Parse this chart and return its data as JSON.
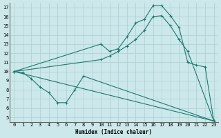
{
  "bg_color": "#cce8ea",
  "grid_color": "#aacfd2",
  "line_color": "#1a7a6e",
  "marker": "+",
  "xlabel": "Humidex (Indice chaleur)",
  "xlim": [
    -0.5,
    23.5
  ],
  "ylim": [
    4.5,
    17.5
  ],
  "xticks": [
    0,
    1,
    2,
    3,
    4,
    5,
    6,
    7,
    8,
    9,
    10,
    11,
    12,
    13,
    14,
    15,
    16,
    17,
    18,
    19,
    20,
    21,
    22,
    23
  ],
  "yticks": [
    5,
    6,
    7,
    8,
    9,
    10,
    11,
    12,
    13,
    14,
    15,
    16,
    17
  ],
  "curve1_x": [
    0,
    1,
    2,
    3,
    4,
    5,
    6,
    7,
    8,
    23
  ],
  "curve1_y": [
    10.0,
    9.9,
    9.2,
    8.3,
    7.7,
    6.6,
    6.6,
    8.0,
    9.5,
    4.6
  ],
  "curve2_x": [
    0,
    10,
    11,
    12,
    13,
    14,
    15,
    16,
    17,
    18,
    19,
    20,
    21,
    22,
    23
  ],
  "curve2_y": [
    10.0,
    13.0,
    12.2,
    12.5,
    13.8,
    15.3,
    15.7,
    17.2,
    17.2,
    16.1,
    14.8,
    11.0,
    10.7,
    10.5,
    4.6
  ],
  "curve3_x": [
    0,
    10,
    11,
    12,
    13,
    14,
    15,
    16,
    17,
    18,
    19,
    20,
    23
  ],
  "curve3_y": [
    10.0,
    11.3,
    11.7,
    12.2,
    12.8,
    13.5,
    14.5,
    16.0,
    16.1,
    15.0,
    13.5,
    12.2,
    4.6
  ],
  "curve4_x": [
    0,
    23
  ],
  "curve4_y": [
    10.0,
    4.6
  ]
}
